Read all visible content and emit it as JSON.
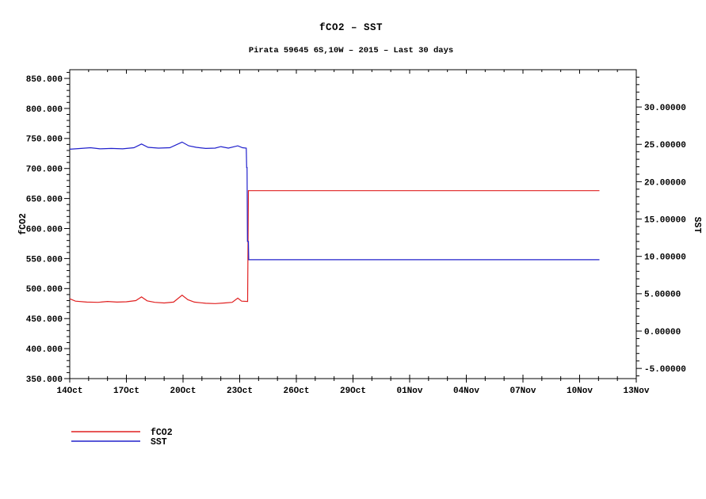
{
  "title": "fCO2 – SST",
  "subtitle": "Pirata 59645 6S,10W – 2015 – Last 30 days",
  "colors": {
    "fco2_line": "#e02020",
    "sst_line": "#2020cc",
    "axis": "#000000",
    "background": "#ffffff"
  },
  "legend": {
    "items": [
      {
        "label": "fCO2",
        "color": "#e02020"
      },
      {
        "label": "SST",
        "color": "#2020cc"
      }
    ]
  },
  "chart_data": {
    "type": "line",
    "title": "fCO2 – SST",
    "subtitle": "Pirata 59645 6S,10W – 2015 – Last 30 days",
    "grid": false,
    "legend_position": "bottom-left",
    "x_axis": {
      "unit": "date",
      "start_label": "14Oct",
      "end_label": "13Nov",
      "range_days": [
        0,
        30
      ],
      "major_tick_every_days": 3,
      "minor_tick_every_days": 1,
      "tick_labels": [
        "14Oct",
        "17Oct",
        "20Oct",
        "23Oct",
        "26Oct",
        "29Oct",
        "01Nov",
        "04Nov",
        "07Nov",
        "10Nov",
        "13Nov"
      ]
    },
    "left_axis": {
      "label": "fCO2",
      "tick_values": [
        350,
        400,
        450,
        500,
        550,
        600,
        650,
        700,
        750,
        800,
        850
      ],
      "tick_labels": [
        "350.000",
        "400.000",
        "450.000",
        "500.000",
        "550.000",
        "600.000",
        "650.000",
        "700.000",
        "750.000",
        "800.000",
        "850.000"
      ],
      "minor_step": 10,
      "range": [
        350,
        864
      ]
    },
    "right_axis": {
      "label": "SST",
      "tick_values": [
        -5,
        0,
        5,
        10,
        15,
        20,
        25,
        30
      ],
      "tick_labels": [
        "-5.00000",
        "0.00000",
        "5.00000",
        "10.00000",
        "15.00000",
        "20.00000",
        "25.00000",
        "30.00000"
      ],
      "minor_step": 1,
      "range": [
        -6.3,
        35
      ]
    },
    "series": [
      {
        "name": "fCO2",
        "axis": "left",
        "color": "#e02020",
        "summary": "flat near 478 with small bumps until ~23.4 Oct, step up to ~663 until ~11 Nov",
        "points": [
          [
            0,
            483
          ],
          [
            0.3,
            479
          ],
          [
            0.9,
            477.5
          ],
          [
            1.5,
            477
          ],
          [
            2.0,
            478.5
          ],
          [
            2.5,
            477.5
          ],
          [
            3.0,
            478
          ],
          [
            3.5,
            480
          ],
          [
            3.8,
            486
          ],
          [
            4.1,
            479.5
          ],
          [
            4.5,
            477
          ],
          [
            5.0,
            476
          ],
          [
            5.5,
            477.5
          ],
          [
            5.95,
            489
          ],
          [
            6.25,
            481.5
          ],
          [
            6.6,
            477.5
          ],
          [
            7.2,
            475.5
          ],
          [
            7.7,
            475
          ],
          [
            8.2,
            476
          ],
          [
            8.6,
            477
          ],
          [
            8.9,
            484
          ],
          [
            9.1,
            479
          ],
          [
            9.42,
            478.5
          ],
          [
            9.46,
            663
          ],
          [
            28.05,
            663
          ]
        ]
      },
      {
        "name": "SST",
        "axis": "right",
        "color": "#2020cc",
        "summary": "flat near 24.5 C with small bumps until ~23.4 Oct, step down to ~9.55 C until ~11 Nov",
        "points": [
          [
            0,
            24.35
          ],
          [
            0.6,
            24.45
          ],
          [
            1.1,
            24.55
          ],
          [
            1.6,
            24.4
          ],
          [
            2.2,
            24.45
          ],
          [
            2.8,
            24.4
          ],
          [
            3.4,
            24.55
          ],
          [
            3.8,
            25.05
          ],
          [
            4.15,
            24.6
          ],
          [
            4.7,
            24.5
          ],
          [
            5.3,
            24.55
          ],
          [
            5.95,
            25.3
          ],
          [
            6.3,
            24.8
          ],
          [
            6.7,
            24.6
          ],
          [
            7.2,
            24.45
          ],
          [
            7.7,
            24.5
          ],
          [
            8.0,
            24.7
          ],
          [
            8.4,
            24.5
          ],
          [
            8.9,
            24.8
          ],
          [
            9.15,
            24.55
          ],
          [
            9.35,
            24.5
          ],
          [
            9.37,
            21.9
          ],
          [
            9.39,
            21.9
          ],
          [
            9.41,
            12.0
          ],
          [
            9.46,
            12.0
          ],
          [
            9.48,
            9.55
          ],
          [
            28.05,
            9.55
          ]
        ]
      }
    ]
  }
}
